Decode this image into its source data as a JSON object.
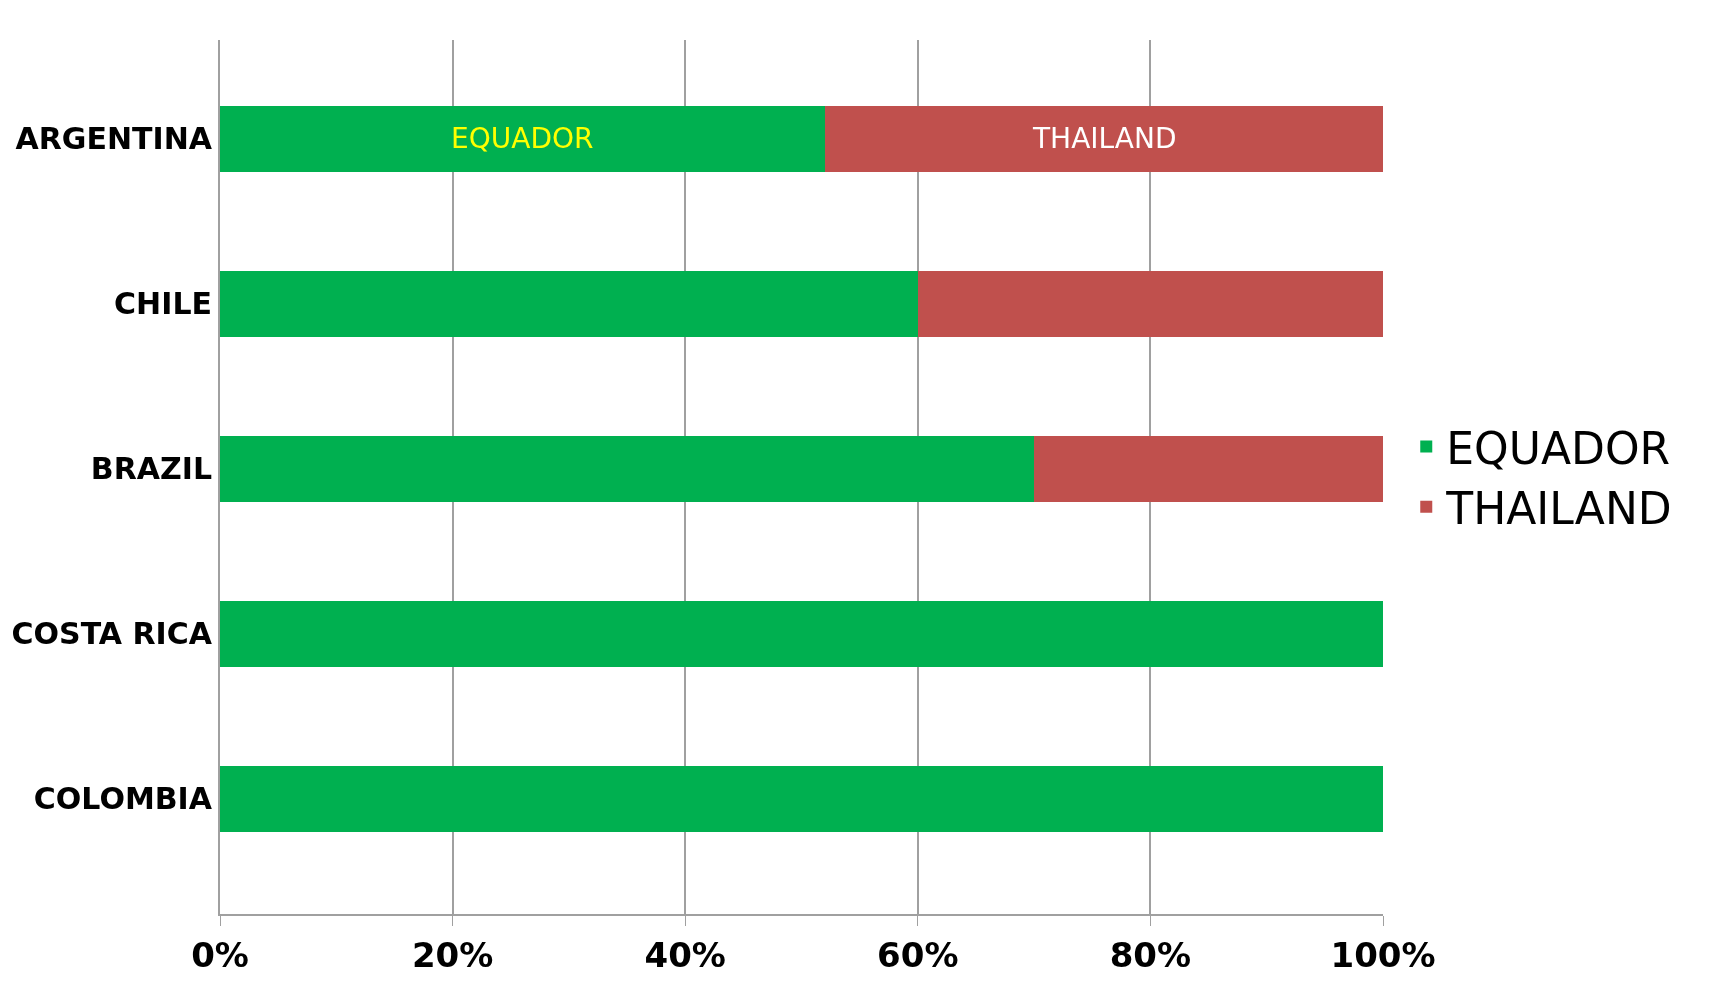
{
  "chart_data": {
    "type": "bar",
    "orientation": "horizontal",
    "stacked": true,
    "categories": [
      "ARGENTINA",
      "CHILE",
      "BRAZIL",
      "COSTA RICA",
      "COLOMBIA"
    ],
    "series": [
      {
        "name": "EQUADOR",
        "color": "#00b050",
        "values": [
          52,
          60,
          70,
          100,
          100
        ]
      },
      {
        "name": "THAILAND",
        "color": "#c0504d",
        "values": [
          48,
          40,
          30,
          0,
          0
        ]
      }
    ],
    "xlim": [
      0,
      100
    ],
    "xticks": [
      {
        "value": 0,
        "label": "0%"
      },
      {
        "value": 20,
        "label": "20%"
      },
      {
        "value": 40,
        "label": "40%"
      },
      {
        "value": 60,
        "label": "60%"
      },
      {
        "value": 80,
        "label": "80%"
      },
      {
        "value": 100,
        "label": "100%"
      }
    ],
    "annotations": [
      "EQUADOR",
      "THAILAND"
    ],
    "grid": "x",
    "legend": "right"
  }
}
